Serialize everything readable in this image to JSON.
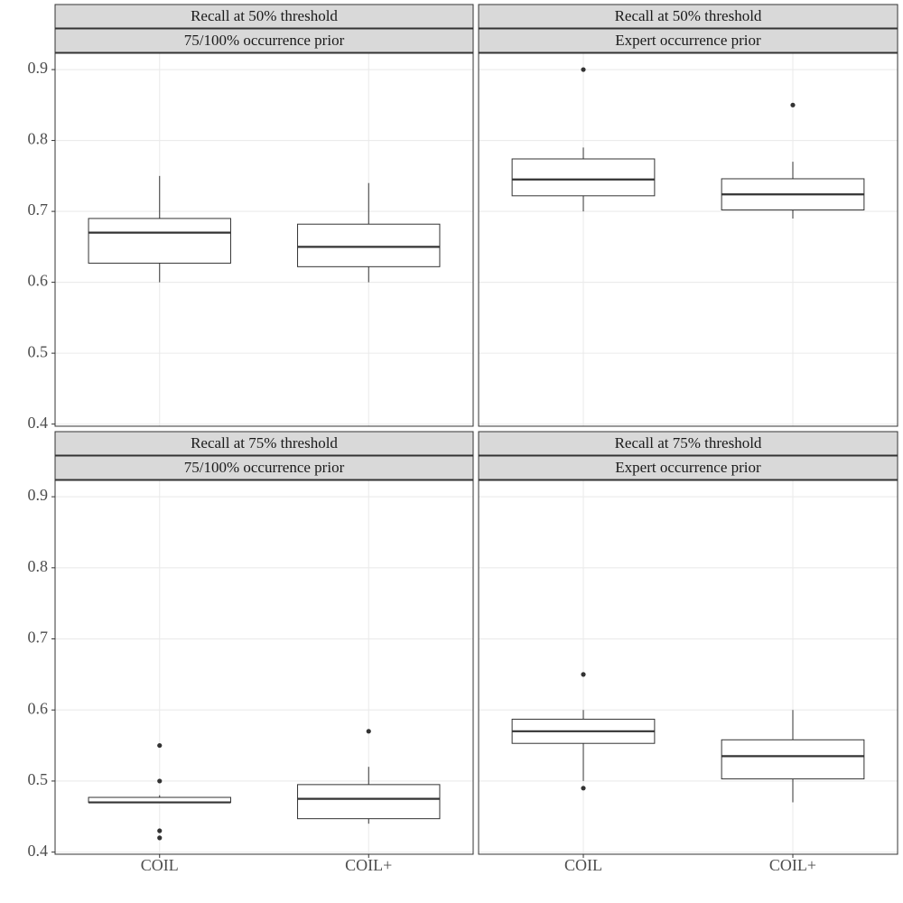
{
  "chart_data": [
    {
      "type": "box",
      "title": "Recall at 50% threshold",
      "subtitle": "75/100% occurrence prior",
      "categories": [
        "COIL",
        "COIL+"
      ],
      "boxes": [
        {
          "min": 0.6,
          "q1": 0.627,
          "median": 0.67,
          "q3": 0.69,
          "max": 0.75,
          "outliers": []
        },
        {
          "min": 0.6,
          "q1": 0.622,
          "median": 0.65,
          "q3": 0.682,
          "max": 0.74,
          "outliers": []
        }
      ],
      "ylim": [
        0.397,
        0.923
      ],
      "yticks": [
        0.4,
        0.5,
        0.6,
        0.7,
        0.8,
        0.9
      ],
      "grid": true
    },
    {
      "type": "box",
      "title": "Recall at 50% threshold",
      "subtitle": "Expert occurrence prior",
      "categories": [
        "COIL",
        "COIL+"
      ],
      "boxes": [
        {
          "min": 0.7,
          "q1": 0.722,
          "median": 0.745,
          "q3": 0.774,
          "max": 0.79,
          "outliers": [
            0.9
          ]
        },
        {
          "min": 0.69,
          "q1": 0.702,
          "median": 0.724,
          "q3": 0.746,
          "max": 0.77,
          "outliers": [
            0.85
          ]
        }
      ],
      "ylim": [
        0.397,
        0.923
      ],
      "yticks": [
        0.4,
        0.5,
        0.6,
        0.7,
        0.8,
        0.9
      ],
      "grid": true
    },
    {
      "type": "box",
      "title": "Recall at 75% threshold",
      "subtitle": "75/100% occurrence prior",
      "categories": [
        "COIL",
        "COIL+"
      ],
      "boxes": [
        {
          "min": 0.47,
          "q1": 0.47,
          "median": 0.47,
          "q3": 0.477,
          "max": 0.48,
          "outliers": [
            0.55,
            0.5,
            0.43,
            0.42
          ]
        },
        {
          "min": 0.44,
          "q1": 0.447,
          "median": 0.475,
          "q3": 0.495,
          "max": 0.52,
          "outliers": [
            0.57
          ]
        }
      ],
      "ylim": [
        0.397,
        0.923
      ],
      "yticks": [
        0.4,
        0.5,
        0.6,
        0.7,
        0.8,
        0.9
      ],
      "grid": true
    },
    {
      "type": "box",
      "title": "Recall at 75% threshold",
      "subtitle": "Expert occurrence prior",
      "categories": [
        "COIL",
        "COIL+"
      ],
      "boxes": [
        {
          "min": 0.5,
          "q1": 0.553,
          "median": 0.57,
          "q3": 0.587,
          "max": 0.6,
          "outliers": [
            0.65,
            0.49
          ]
        },
        {
          "min": 0.47,
          "q1": 0.503,
          "median": 0.535,
          "q3": 0.558,
          "max": 0.6,
          "outliers": []
        }
      ],
      "ylim": [
        0.397,
        0.923
      ],
      "yticks": [
        0.4,
        0.5,
        0.6,
        0.7,
        0.8,
        0.9
      ],
      "grid": true
    }
  ]
}
